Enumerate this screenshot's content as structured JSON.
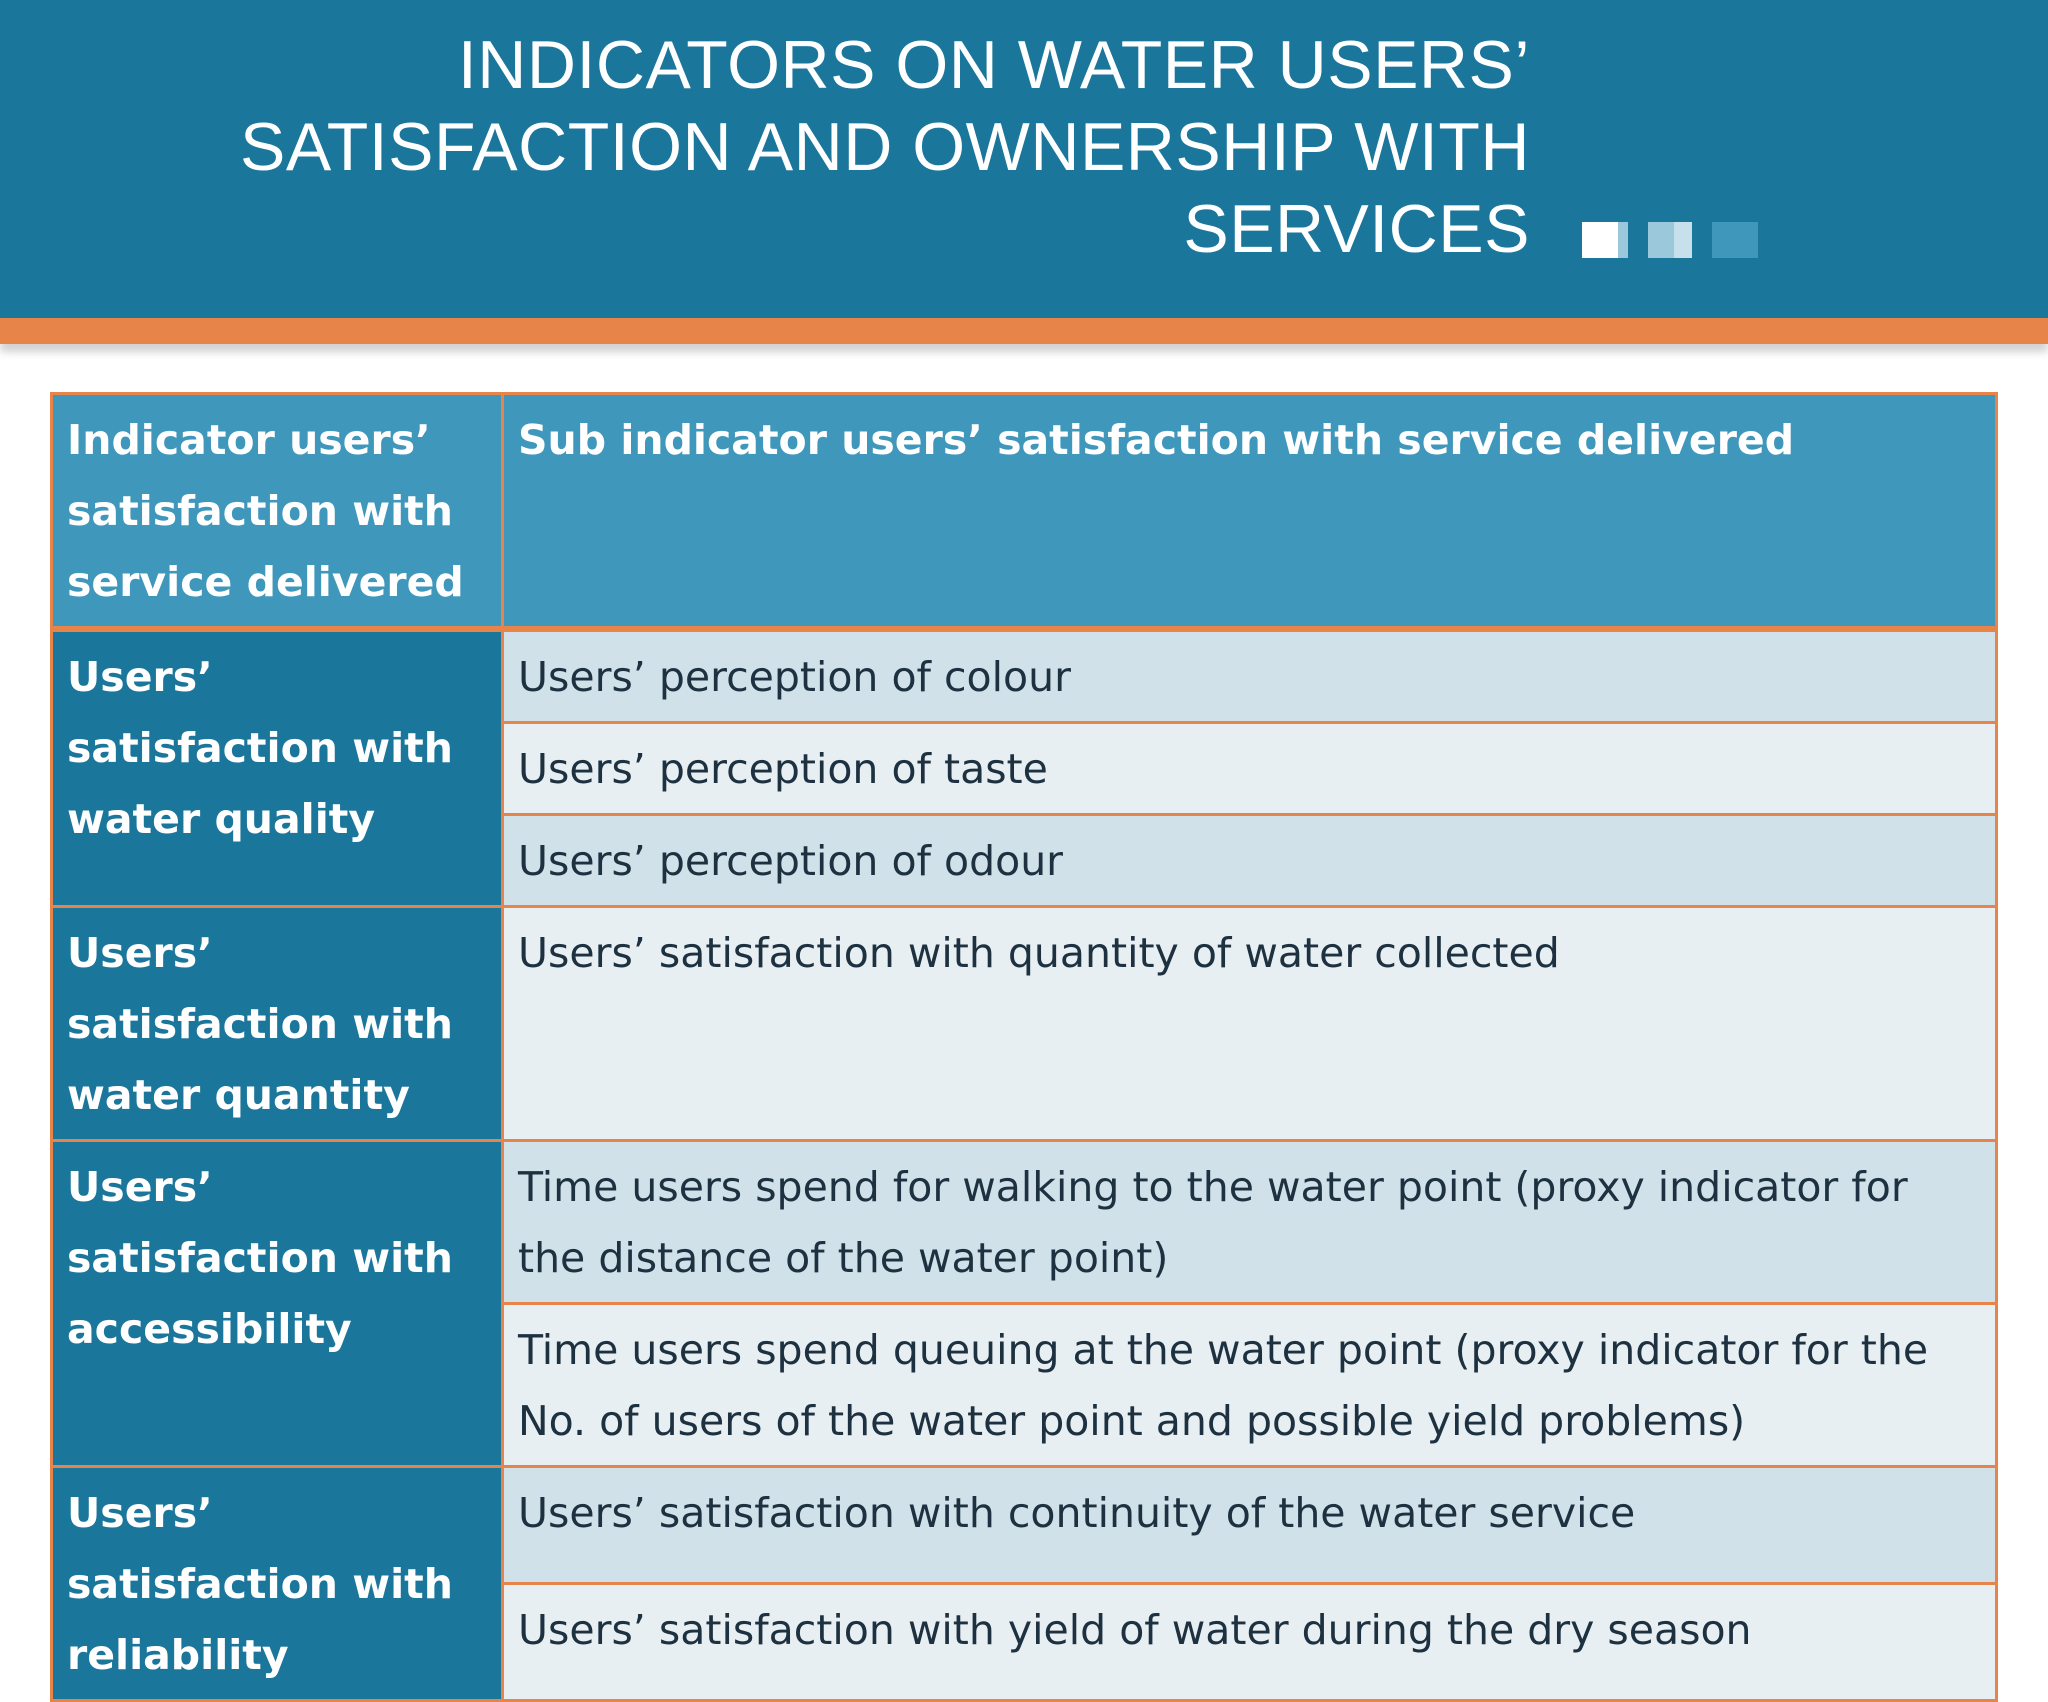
{
  "slide": {
    "title_lines": [
      "INDICATORS ON WATER USERS’",
      "SATISFACTION AND OWNERSHIP WITH",
      "SERVICES"
    ]
  },
  "table": {
    "header": {
      "indicator": "Indicator users’ satisfaction with service delivered",
      "sub_indicator": "Sub indicator users’ satisfaction with service delivered"
    },
    "groups": [
      {
        "indicator": "Users’ satisfaction with water quality",
        "sub_indicators": [
          "Users’ perception of colour",
          "Users’ perception of taste",
          "Users’ perception of odour"
        ]
      },
      {
        "indicator": "Users’ satisfaction with water quantity",
        "sub_indicators": [
          "Users’ satisfaction with quantity of water collected"
        ]
      },
      {
        "indicator": "Users’ satisfaction with accessibility",
        "sub_indicators": [
          "Time users spend for walking to the water point (proxy indicator for the distance of the water point)",
          "Time users spend queuing at the water point (proxy indicator for the No. of users of the water point and possible yield problems)"
        ]
      },
      {
        "indicator": "Users’ satisfaction with reliability",
        "sub_indicators": [
          "Users’ satisfaction with continuity of the water service",
          "Users’ satisfaction with yield of water during the dry season"
        ]
      }
    ]
  },
  "colors": {
    "header_blue": "#1b769b",
    "table_header_blue": "#3f97bb",
    "accent_orange": "#e6844a",
    "row_shade": "#d0e1e9",
    "row_light": "#e8eff3"
  }
}
